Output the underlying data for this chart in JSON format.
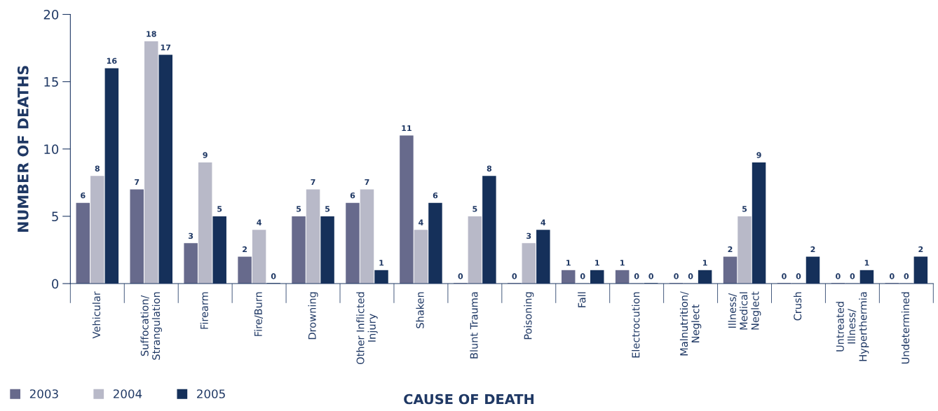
{
  "chart_data": {
    "type": "bar",
    "xlabel": "CAUSE OF DEATH",
    "ylabel": "NUMBER OF DEATHS",
    "categories": [
      "Vehicular",
      "Suffocation/\nStrangulation",
      "Firearm",
      "Fire/Burn",
      "Drowning",
      "Other Inflicted\nInjury",
      "Shaken",
      "Blunt Trauma",
      "Poisoning",
      "Fall",
      "Electrocution",
      "Malnutrition/\nNeglect",
      "Illness/\nMedical\nNeglect",
      "Crush",
      "Untreated\nIllness/\nHyperthermia",
      "Undetermined"
    ],
    "series": [
      {
        "name": "2003",
        "color": "#676a8c",
        "values": [
          6,
          7,
          3,
          2,
          5,
          6,
          11,
          0,
          0,
          1,
          1,
          0,
          2,
          0,
          0,
          0
        ]
      },
      {
        "name": "2004",
        "color": "#b8b9c8",
        "values": [
          8,
          18,
          9,
          4,
          7,
          7,
          4,
          5,
          3,
          0,
          0,
          0,
          5,
          0,
          0,
          0
        ]
      },
      {
        "name": "2005",
        "color": "#15305a",
        "values": [
          16,
          17,
          5,
          0,
          5,
          1,
          6,
          8,
          4,
          1,
          0,
          1,
          9,
          2,
          1,
          2
        ]
      }
    ],
    "ylim": [
      0,
      20
    ],
    "yticks": [
      0,
      5,
      10,
      15,
      20
    ],
    "data_labels": true,
    "grid": false,
    "legend": "bottom left"
  }
}
